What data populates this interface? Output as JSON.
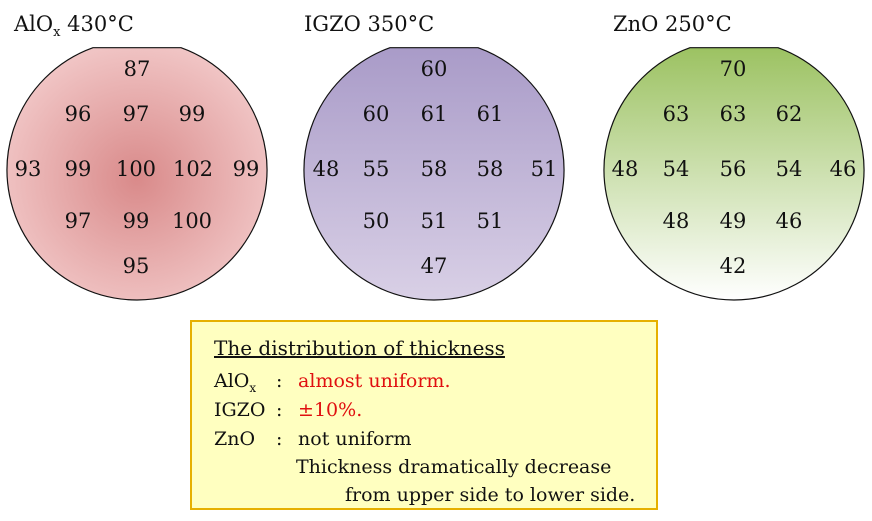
{
  "wafers": [
    {
      "title_main": "AlO",
      "title_sub": "x",
      "title_rest": " 430°C",
      "colors": {
        "center": "#d98a8a",
        "edge": "#f1c6c6",
        "stroke": "#111111"
      },
      "values": [
        "87",
        "96",
        "97",
        "99",
        "93",
        "99",
        "100",
        "102",
        "99",
        "97",
        "99",
        "100",
        "95"
      ]
    },
    {
      "title_main": "IGZO 350°C",
      "title_sub": "",
      "title_rest": "",
      "colors": {
        "top": "#a99bc8",
        "bottom": "#d9d0e6",
        "stroke": "#111111"
      },
      "values": [
        "60",
        "60",
        "61",
        "61",
        "48",
        "55",
        "58",
        "58",
        "51",
        "50",
        "51",
        "51",
        "47"
      ]
    },
    {
      "title_main": "ZnO 250°C",
      "title_sub": "",
      "title_rest": "",
      "colors": {
        "top": "#9cc262",
        "bottom": "#ffffff",
        "stroke": "#111111"
      },
      "values": [
        "70",
        "63",
        "63",
        "62",
        "48",
        "54",
        "56",
        "54",
        "46",
        "48",
        "49",
        "46",
        "42"
      ]
    }
  ],
  "summary": {
    "heading": "The distribution of thickness",
    "rows": [
      {
        "material_main": "AlO",
        "material_sub": "x",
        "colon": ":",
        "text": "almost uniform.",
        "color": "#e01010"
      },
      {
        "material_main": "IGZO",
        "material_sub": "",
        "colon": ":",
        "text": "±10%.",
        "color": "#e01010"
      },
      {
        "material_main": "ZnO",
        "material_sub": "",
        "colon": ":",
        "text": "not uniform",
        "color": "#111111"
      }
    ],
    "continuation_1": "Thickness dramatically decrease",
    "continuation_2": "from upper side to lower side."
  }
}
